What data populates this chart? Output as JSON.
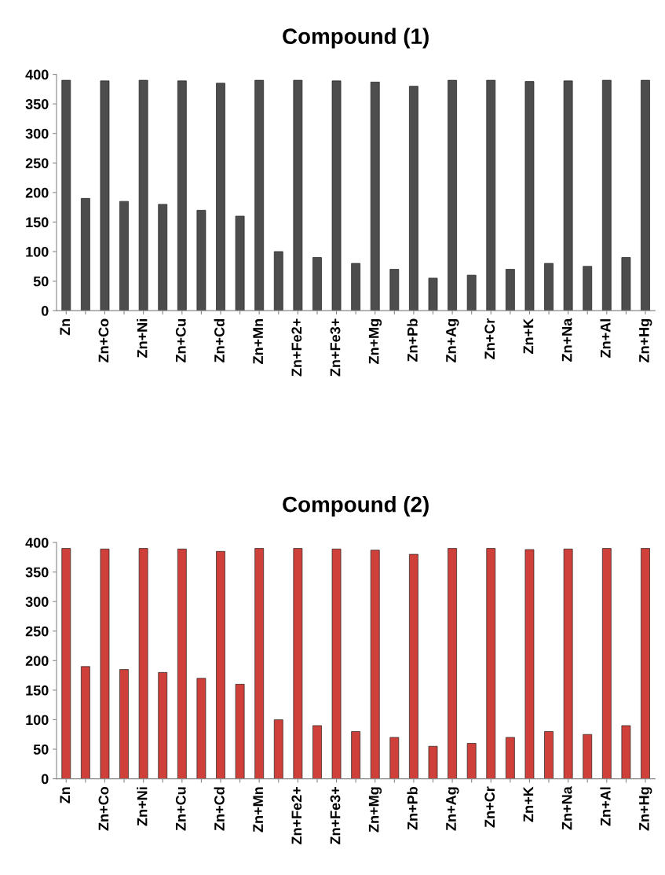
{
  "chart_data": [
    {
      "type": "bar",
      "title": "Compound (1)",
      "categories": [
        "Zn",
        null,
        "Zn+Co",
        null,
        "Zn+Ni",
        null,
        "Zn+Cu",
        null,
        "Zn+Cd",
        null,
        "Zn+Mn",
        null,
        "Zn+Fe2+",
        null,
        "Zn+Fe3+",
        null,
        "Zn+Mg",
        null,
        "Zn+Pb",
        null,
        "Zn+Ag",
        null,
        "Zn+Cr",
        null,
        "Zn+K",
        null,
        "Zn+Na",
        null,
        "Zn+Al",
        null,
        "Zn+Hg"
      ],
      "values": [
        390,
        190,
        389,
        185,
        390,
        180,
        389,
        170,
        385,
        160,
        390,
        100,
        390,
        90,
        389,
        80,
        387,
        70,
        380,
        55,
        390,
        60,
        390,
        70,
        388,
        80,
        389,
        75,
        390,
        90,
        390
      ],
      "color": "#4d4d4d",
      "ylim": [
        0,
        400
      ],
      "yticks": [
        0,
        50,
        100,
        150,
        200,
        250,
        300,
        350,
        400
      ],
      "grid": false,
      "legend": false
    },
    {
      "type": "bar",
      "title": "Compound (2)",
      "categories": [
        "Zn",
        null,
        "Zn+Co",
        null,
        "Zn+Ni",
        null,
        "Zn+Cu",
        null,
        "Zn+Cd",
        null,
        "Zn+Mn",
        null,
        "Zn+Fe2+",
        null,
        "Zn+Fe3+",
        null,
        "Zn+Mg",
        null,
        "Zn+Pb",
        null,
        "Zn+Ag",
        null,
        "Zn+Cr",
        null,
        "Zn+K",
        null,
        "Zn+Na",
        null,
        "Zn+Al",
        null,
        "Zn+Hg"
      ],
      "values": [
        390,
        190,
        389,
        185,
        390,
        180,
        389,
        170,
        385,
        160,
        390,
        100,
        390,
        90,
        389,
        80,
        387,
        70,
        380,
        55,
        390,
        60,
        390,
        70,
        388,
        80,
        389,
        75,
        390,
        90,
        390
      ],
      "color": "#d0403a",
      "ylim": [
        0,
        400
      ],
      "yticks": [
        0,
        50,
        100,
        150,
        200,
        250,
        300,
        350,
        400
      ],
      "grid": false,
      "legend": false
    }
  ]
}
